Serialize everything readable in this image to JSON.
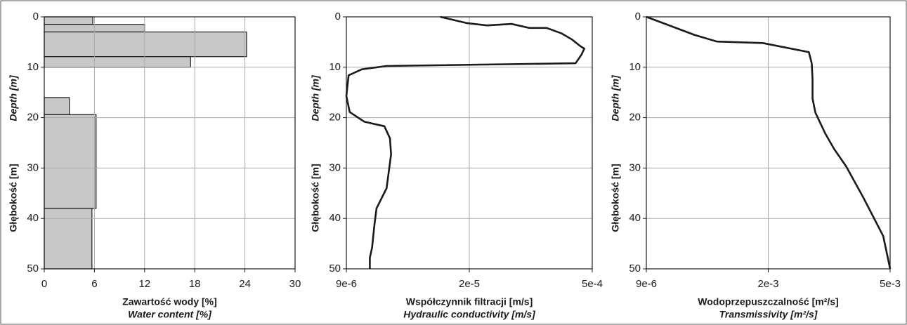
{
  "chart_data": [
    {
      "type": "step",
      "y_label": "Głębokość [m]",
      "y_label_en": "Depth [m]",
      "x_label": "Zawartość wody [%]",
      "x_label_en": "Water content [%]",
      "depth_bounds": [
        0,
        1.5,
        3,
        7.9,
        10,
        16,
        19.4,
        38,
        50
      ],
      "values": [
        5.8,
        12,
        24.2,
        17.5,
        0,
        3,
        6.2,
        5.7
      ],
      "color": "#c8c8c8",
      "xlim": [
        0,
        30
      ],
      "xticks": [
        0,
        6,
        12,
        18,
        24,
        30
      ],
      "ylim": [
        0,
        50
      ],
      "yticks": [
        0,
        10,
        20,
        30,
        40,
        50
      ],
      "y_inverted": true,
      "grid": true
    },
    {
      "type": "line",
      "y_label": "Głębokość [m]",
      "y_label_en": "Depth [m]",
      "x_label": "Współczynnik filtracji [m/s]",
      "x_label_en": "Hydraulic conductivity [m/s]",
      "depth": [
        0,
        1.25,
        1.7,
        1.4,
        2.2,
        2.2,
        3.3,
        4.5,
        5.8,
        6.3,
        7.5,
        9.2,
        9.75,
        10.4,
        11.6,
        15.7,
        18.9,
        20.8,
        21.7,
        24.1,
        27.3,
        34,
        38,
        41.5,
        45.8,
        47.8,
        50
      ],
      "values": [
        1.74e-05,
        1.98e-05,
        8.9e-05,
        0.000185,
        0.000253,
        0.000322,
        0.000381,
        0.000421,
        0.000453,
        0.000469,
        0.000458,
        0.000435,
        1.26e-05,
        1.04e-05,
        9.2e-06,
        9e-06,
        9.3e-06,
        1.06e-05,
        1.24e-05,
        1.29e-05,
        1.3e-05,
        1.26e-05,
        1.17e-05,
        1.15e-05,
        1.13e-05,
        1.11e-05,
        1.11e-05
      ],
      "color": "#1a1a1a",
      "xlim": [
        9e-06,
        0.0005
      ],
      "xticks": [
        {
          "value": 9e-06,
          "label": "9e-6"
        },
        {
          "value": 2e-05,
          "label": "2e-5"
        },
        {
          "value": 0.0005,
          "label": "5e-4"
        }
      ],
      "ylim": [
        0,
        50
      ],
      "yticks": [
        0,
        10,
        20,
        30,
        40,
        50
      ],
      "y_inverted": true,
      "grid": true
    },
    {
      "type": "line",
      "y_label": "Głębokość [m]",
      "y_label_en": "Depth [m]",
      "x_label": "Wodoprzepuszczalność [m²/s]",
      "x_label_en": "Transmissivity [m²/s]",
      "depth": [
        0,
        3.6,
        4.9,
        5.2,
        7,
        9.2,
        12.3,
        16.2,
        19,
        23.1,
        26.2,
        29.7,
        36,
        43.5,
        50
      ],
      "values": [
        9e-06,
        0.0008,
        0.00116,
        0.00191,
        0.003,
        0.00307,
        0.00309,
        0.00309,
        0.00316,
        0.0034,
        0.00362,
        0.00392,
        0.00435,
        0.00483,
        0.005
      ],
      "color": "#1a1a1a",
      "xlim": [
        9e-06,
        0.005
      ],
      "xticks": [
        {
          "value": 9e-06,
          "label": "9e-6"
        },
        {
          "value": 0.002,
          "label": "2e-3"
        },
        {
          "value": 0.005,
          "label": "5e-3"
        }
      ],
      "ylim": [
        0,
        50
      ],
      "yticks": [
        0,
        10,
        20,
        30,
        40,
        50
      ],
      "y_inverted": true,
      "grid": true
    }
  ]
}
